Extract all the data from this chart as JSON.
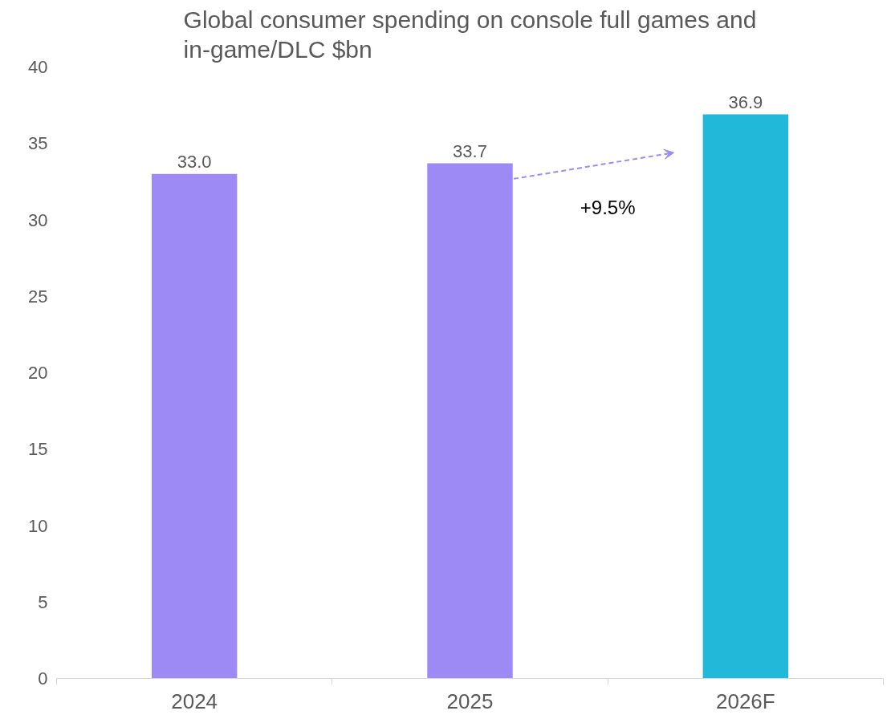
{
  "chart_data": {
    "type": "bar",
    "title": "Global consumer spending on console full games and\nin-game/DLC $bn",
    "categories": [
      "2024",
      "2025",
      "2026F"
    ],
    "values": [
      33.0,
      33.7,
      36.9
    ],
    "colors": [
      "#9e8af5",
      "#9e8af5",
      "#22b8d9"
    ],
    "value_labels": [
      "33.0",
      "33.7",
      "36.9"
    ],
    "ylim": [
      0,
      40
    ],
    "yticks": [
      0,
      5,
      10,
      15,
      20,
      25,
      30,
      35,
      40
    ],
    "grid": false,
    "annotations": [
      "+9.5%"
    ]
  }
}
